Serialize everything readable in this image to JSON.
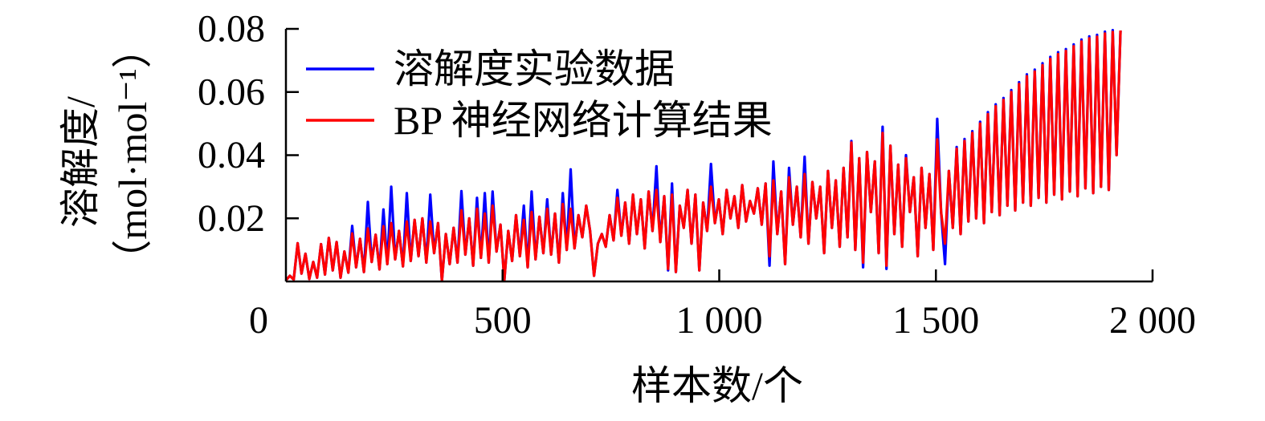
{
  "chart_data": {
    "type": "line",
    "xlabel": "样本数/个",
    "ylabel_lines": [
      "溶解度/",
      "（mol·mol⁻¹）"
    ],
    "xlim": [
      0,
      2000
    ],
    "ylim": [
      0,
      0.08
    ],
    "xticks": {
      "values": [
        0,
        500,
        1000,
        1500,
        2000
      ],
      "labels": [
        "0",
        "500",
        "1 000",
        "1 500",
        "2 000"
      ]
    },
    "yticks": {
      "values": [
        0.02,
        0.04,
        0.06,
        0.08
      ],
      "labels": [
        "0.02",
        "0.04",
        "0.06",
        "0.08"
      ]
    },
    "grid": false,
    "legend": "top-left",
    "x": [
      0,
      9,
      18,
      27,
      36,
      45,
      54,
      63,
      72,
      81,
      90,
      99,
      108,
      117,
      126,
      135,
      144,
      153,
      162,
      171,
      180,
      189,
      198,
      207,
      216,
      225,
      234,
      243,
      252,
      261,
      270,
      279,
      288,
      297,
      306,
      315,
      324,
      333,
      342,
      351,
      360,
      369,
      378,
      387,
      396,
      405,
      414,
      423,
      432,
      441,
      450,
      459,
      468,
      477,
      486,
      495,
      504,
      513,
      522,
      531,
      540,
      549,
      558,
      567,
      576,
      585,
      594,
      603,
      612,
      621,
      630,
      639,
      648,
      657,
      666,
      675,
      684,
      693,
      702,
      711,
      720,
      729,
      738,
      747,
      756,
      765,
      774,
      783,
      792,
      801,
      810,
      819,
      828,
      837,
      846,
      855,
      864,
      873,
      882,
      891,
      900,
      909,
      918,
      927,
      936,
      945,
      954,
      963,
      972,
      981,
      990,
      999,
      1008,
      1017,
      1026,
      1035,
      1044,
      1053,
      1062,
      1071,
      1080,
      1089,
      1098,
      1107,
      1116,
      1125,
      1134,
      1143,
      1152,
      1161,
      1170,
      1179,
      1188,
      1197,
      1206,
      1215,
      1224,
      1233,
      1242,
      1251,
      1260,
      1269,
      1278,
      1287,
      1296,
      1305,
      1314,
      1323,
      1332,
      1341,
      1350,
      1359,
      1368,
      1377,
      1386,
      1395,
      1404,
      1413,
      1422,
      1431,
      1440,
      1449,
      1458,
      1467,
      1476,
      1485,
      1494,
      1503,
      1512,
      1521,
      1530,
      1539,
      1548,
      1557,
      1566,
      1575,
      1584,
      1593,
      1602,
      1611,
      1620,
      1629,
      1638,
      1647,
      1656,
      1665,
      1674,
      1683,
      1692,
      1701,
      1710,
      1719,
      1728,
      1737,
      1746,
      1755,
      1764,
      1773,
      1782,
      1791,
      1800,
      1809,
      1818,
      1827,
      1836,
      1845,
      1854,
      1863,
      1872,
      1881,
      1890,
      1899,
      1908,
      1917,
      1926
    ],
    "series": [
      {
        "name": "溶解度实验数据",
        "color": "#0000ff",
        "values": [
          0.0004,
          0.0018,
          0.0006,
          0.0121,
          0.0025,
          0.0088,
          0.0008,
          0.0062,
          0.0012,
          0.0118,
          0.0022,
          0.0138,
          0.0035,
          0.0125,
          0.0012,
          0.0095,
          0.0028,
          0.0176,
          0.0045,
          0.0135,
          0.003,
          0.0252,
          0.0062,
          0.0148,
          0.0038,
          0.0228,
          0.0055,
          0.03,
          0.007,
          0.016,
          0.0048,
          0.028,
          0.0065,
          0.0195,
          0.008,
          0.02,
          0.006,
          0.0275,
          0.009,
          0.0185,
          0.0002,
          0.015,
          0.0055,
          0.017,
          0.006,
          0.0286,
          0.0085,
          0.02,
          0.005,
          0.0265,
          0.0075,
          0.028,
          0.006,
          0.0285,
          0.0095,
          0.018,
          0.0003,
          0.016,
          0.0065,
          0.021,
          0.008,
          0.024,
          0.0045,
          0.0285,
          0.007,
          0.0205,
          0.009,
          0.026,
          0.0085,
          0.0215,
          0.006,
          0.028,
          0.01,
          0.0355,
          0.0105,
          0.021,
          0.014,
          0.024,
          0.016,
          0.0018,
          0.012,
          0.015,
          0.011,
          0.021,
          0.013,
          0.029,
          0.0145,
          0.025,
          0.012,
          0.0275,
          0.015,
          0.026,
          0.0105,
          0.0285,
          0.016,
          0.0365,
          0.0125,
          0.027,
          0.0035,
          0.031,
          0.003,
          0.024,
          0.017,
          0.029,
          0.012,
          0.0275,
          0.0035,
          0.025,
          0.016,
          0.0372,
          0.0185,
          0.026,
          0.015,
          0.029,
          0.02,
          0.027,
          0.017,
          0.0305,
          0.019,
          0.0255,
          0.0215,
          0.0295,
          0.018,
          0.031,
          0.005,
          0.038,
          0.015,
          0.0285,
          0.0055,
          0.036,
          0.018,
          0.03,
          0.014,
          0.0395,
          0.012,
          0.0315,
          0.02,
          0.03,
          0.009,
          0.035,
          0.017,
          0.032,
          0.011,
          0.036,
          0.014,
          0.0445,
          0.01,
          0.039,
          0.0045,
          0.041,
          0.022,
          0.038,
          0.009,
          0.049,
          0.004,
          0.043,
          0.015,
          0.037,
          0.011,
          0.04,
          0.022,
          0.033,
          0.008,
          0.036,
          0.017,
          0.034,
          0.01,
          0.0515,
          0.022,
          0.0055,
          0.035,
          0.017,
          0.0426,
          0.015,
          0.0451,
          0.019,
          0.0476,
          0.02,
          0.0506,
          0.0185,
          0.0536,
          0.022,
          0.0561,
          0.021,
          0.0581,
          0.024,
          0.0606,
          0.0225,
          0.0631,
          0.025,
          0.0656,
          0.024,
          0.0671,
          0.0265,
          0.0691,
          0.025,
          0.0711,
          0.0275,
          0.0726,
          0.026,
          0.0736,
          0.0285,
          0.0751,
          0.027,
          0.0766,
          0.0295,
          0.0776,
          0.028,
          0.0781,
          0.03,
          0.0791,
          0.029,
          0.0796,
          0.04,
          0.0795
        ]
      },
      {
        "name": "BP 神经网络计算结果",
        "color": "#ff0000",
        "values": [
          0.0004,
          0.0018,
          0.0006,
          0.0121,
          0.0025,
          0.0088,
          0.0008,
          0.0062,
          0.0012,
          0.0118,
          0.0022,
          0.0138,
          0.0035,
          0.0125,
          0.0012,
          0.0095,
          0.0028,
          0.0152,
          0.0045,
          0.0135,
          0.003,
          0.0168,
          0.0062,
          0.0148,
          0.0038,
          0.0175,
          0.0055,
          0.0185,
          0.007,
          0.016,
          0.0048,
          0.019,
          0.0065,
          0.0195,
          0.008,
          0.02,
          0.006,
          0.019,
          0.009,
          0.0185,
          0.0002,
          0.015,
          0.0055,
          0.017,
          0.006,
          0.0225,
          0.0085,
          0.02,
          0.005,
          0.023,
          0.0075,
          0.0215,
          0.006,
          0.024,
          0.0095,
          0.018,
          0.0003,
          0.016,
          0.0065,
          0.021,
          0.008,
          0.0195,
          0.0045,
          0.022,
          0.007,
          0.0205,
          0.009,
          0.023,
          0.0085,
          0.0215,
          0.006,
          0.0245,
          0.01,
          0.023,
          0.0105,
          0.021,
          0.014,
          0.024,
          0.016,
          0.0018,
          0.012,
          0.015,
          0.011,
          0.021,
          0.013,
          0.0265,
          0.0145,
          0.025,
          0.012,
          0.0275,
          0.015,
          0.026,
          0.0105,
          0.0285,
          0.016,
          0.029,
          0.0125,
          0.027,
          0.004,
          0.0275,
          0.003,
          0.024,
          0.017,
          0.029,
          0.012,
          0.0275,
          0.0035,
          0.025,
          0.016,
          0.03,
          0.0185,
          0.026,
          0.015,
          0.029,
          0.02,
          0.027,
          0.017,
          0.0305,
          0.019,
          0.0255,
          0.0215,
          0.0295,
          0.018,
          0.031,
          0.008,
          0.032,
          0.015,
          0.0285,
          0.0055,
          0.033,
          0.018,
          0.03,
          0.014,
          0.034,
          0.012,
          0.0315,
          0.02,
          0.03,
          0.009,
          0.035,
          0.017,
          0.032,
          0.011,
          0.036,
          0.014,
          0.044,
          0.01,
          0.039,
          0.006,
          0.041,
          0.022,
          0.038,
          0.009,
          0.047,
          0.005,
          0.043,
          0.015,
          0.037,
          0.011,
          0.039,
          0.022,
          0.033,
          0.008,
          0.036,
          0.017,
          0.034,
          0.01,
          0.045,
          0.022,
          0.012,
          0.035,
          0.017,
          0.042,
          0.015,
          0.0445,
          0.019,
          0.047,
          0.02,
          0.05,
          0.0185,
          0.053,
          0.022,
          0.0555,
          0.021,
          0.0575,
          0.024,
          0.06,
          0.0225,
          0.0625,
          0.025,
          0.065,
          0.024,
          0.0665,
          0.0265,
          0.0685,
          0.025,
          0.0705,
          0.0275,
          0.072,
          0.026,
          0.073,
          0.0285,
          0.0745,
          0.027,
          0.076,
          0.0295,
          0.077,
          0.028,
          0.0775,
          0.03,
          0.0785,
          0.029,
          0.079,
          0.04,
          0.0795
        ]
      }
    ]
  }
}
